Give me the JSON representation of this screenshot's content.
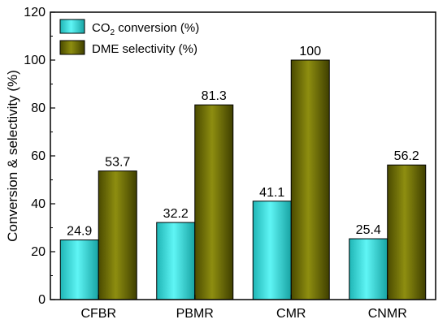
{
  "chart_data": {
    "type": "bar",
    "categories": [
      "CFBR",
      "PBMR",
      "CMR",
      "CNMR"
    ],
    "series": [
      {
        "name": "CO2 conversion (%)",
        "legend_prefix": "CO",
        "legend_sub": "2",
        "legend_suffix": " conversion (%)",
        "color": "#33e0e0",
        "values": [
          24.9,
          32.2,
          41.1,
          25.4
        ],
        "labels": [
          "24.9",
          "32.2",
          "41.1",
          "25.4"
        ]
      },
      {
        "name": "DME selectivity (%)",
        "color": "#6e6e00",
        "values": [
          53.7,
          81.3,
          100,
          56.2
        ],
        "labels": [
          "53.7",
          "81.3",
          "100",
          "56.2"
        ]
      }
    ],
    "xlabel": "",
    "ylabel": "Conversion & selectivity (%)",
    "ylim": [
      0,
      120
    ],
    "yticks": [
      0,
      20,
      40,
      60,
      80,
      100,
      120
    ],
    "legend": "top-left",
    "grid": false
  }
}
